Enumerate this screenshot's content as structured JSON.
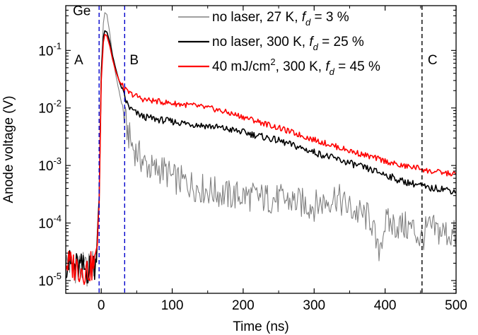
{
  "chart_data": {
    "type": "line",
    "title": "",
    "xlabel": "Time (ns)",
    "ylabel": "Anode voltage (V)",
    "xlim": [
      -50,
      500
    ],
    "ylim": [
      6e-06,
      0.6
    ],
    "yscale": "log",
    "x_ticks": [
      {
        "value": 0,
        "label": "0"
      },
      {
        "value": 100,
        "label": "100"
      },
      {
        "value": 200,
        "label": "200"
      },
      {
        "value": 300,
        "label": "300"
      },
      {
        "value": 400,
        "label": "400"
      },
      {
        "value": 500,
        "label": "500"
      }
    ],
    "y_ticks": [
      {
        "value": 1e-05,
        "base": "10",
        "exp": "-5"
      },
      {
        "value": 0.0001,
        "base": "10",
        "exp": "-4"
      },
      {
        "value": 0.001,
        "base": "10",
        "exp": "-3"
      },
      {
        "value": 0.01,
        "base": "10",
        "exp": "-2"
      },
      {
        "value": 0.1,
        "base": "10",
        "exp": "-1"
      }
    ],
    "region_lines": [
      {
        "x": -3,
        "color": "#0000cc",
        "style": "dashed"
      },
      {
        "x": 33,
        "color": "#0000cc",
        "style": "dashed"
      },
      {
        "x": 452,
        "color": "#000000",
        "style": "dashed"
      }
    ],
    "region_labels": [
      {
        "text": "Ge",
        "x": -40,
        "y": 0.5
      },
      {
        "text": "A",
        "x": -38,
        "y": 0.07
      },
      {
        "text": "B",
        "x": 40,
        "y": 0.07
      },
      {
        "text": "C",
        "x": 460,
        "y": 0.07
      }
    ],
    "legend": {
      "position": "top-right",
      "items": [
        {
          "main": "no laser, 27 K, ",
          "f": "f",
          "sub": "d",
          "tail": " = 3 %",
          "color": "#808080"
        },
        {
          "main": "no laser, 300 K, ",
          "f": "f",
          "sub": "d",
          "tail": " = 25 %",
          "color": "#000000"
        },
        {
          "main": "40 mJ/cm",
          "sup": "2",
          "main2": ", 300 K, ",
          "f": "f",
          "sub": "d",
          "tail": " = 45 %",
          "color": "#ff0000"
        }
      ]
    },
    "series": [
      {
        "color": "#808080",
        "x": [
          -50,
          -20,
          -8,
          -3,
          0,
          3,
          5,
          8,
          12,
          16,
          20,
          25,
          30,
          35,
          40,
          45,
          50,
          55,
          60,
          65,
          70,
          75,
          80,
          90,
          100,
          120,
          140,
          160,
          180,
          200,
          230,
          260,
          300,
          320,
          330,
          340,
          360,
          380,
          390,
          400,
          420,
          440,
          450,
          460,
          480,
          500
        ],
        "y": [
          2e-05,
          1.5e-05,
          2e-05,
          0.0003,
          0.05,
          0.3,
          0.45,
          0.42,
          0.2,
          0.08,
          0.04,
          0.02,
          0.01,
          0.005,
          0.003,
          0.002,
          0.0017,
          0.0014,
          0.0011,
          0.001,
          0.0009,
          0.0008,
          0.0009,
          0.0008,
          0.0006,
          0.0005,
          0.0004,
          0.00035,
          0.0003,
          0.0003,
          0.00027,
          0.00025,
          0.0002,
          0.00025,
          0.0003,
          0.00022,
          0.00015,
          0.00012,
          3e-05,
          0.0001,
          9e-05,
          8e-05,
          5e-05,
          8e-05,
          7e-05,
          6e-05
        ]
      },
      {
        "color": "#000000",
        "x": [
          -50,
          -20,
          -8,
          -3,
          0,
          3,
          5,
          8,
          12,
          16,
          20,
          25,
          30,
          35,
          40,
          50,
          60,
          80,
          100,
          130,
          160,
          200,
          250,
          300,
          350,
          400,
          420,
          450,
          460,
          480,
          500
        ],
        "y": [
          2e-05,
          1.5e-05,
          2e-05,
          0.00025,
          0.04,
          0.17,
          0.22,
          0.21,
          0.14,
          0.08,
          0.05,
          0.03,
          0.02,
          0.013,
          0.01,
          0.008,
          0.007,
          0.0063,
          0.0058,
          0.0052,
          0.0047,
          0.0038,
          0.0027,
          0.0017,
          0.0011,
          0.0007,
          0.00055,
          0.00045,
          0.0004,
          0.0004,
          0.00035
        ]
      },
      {
        "color": "#ff0000",
        "x": [
          -50,
          -20,
          -8,
          -3,
          0,
          3,
          5,
          8,
          12,
          16,
          20,
          25,
          30,
          35,
          40,
          50,
          60,
          80,
          100,
          130,
          160,
          200,
          250,
          300,
          350,
          400,
          420,
          450,
          460,
          480,
          500
        ],
        "y": [
          2e-05,
          1.5e-05,
          2e-05,
          0.0002,
          0.03,
          0.14,
          0.19,
          0.18,
          0.12,
          0.07,
          0.045,
          0.03,
          0.024,
          0.02,
          0.018,
          0.016,
          0.014,
          0.013,
          0.012,
          0.011,
          0.0095,
          0.007,
          0.0045,
          0.0028,
          0.0018,
          0.0012,
          0.001,
          0.0009,
          0.0008,
          0.00075,
          0.0007
        ]
      }
    ]
  }
}
